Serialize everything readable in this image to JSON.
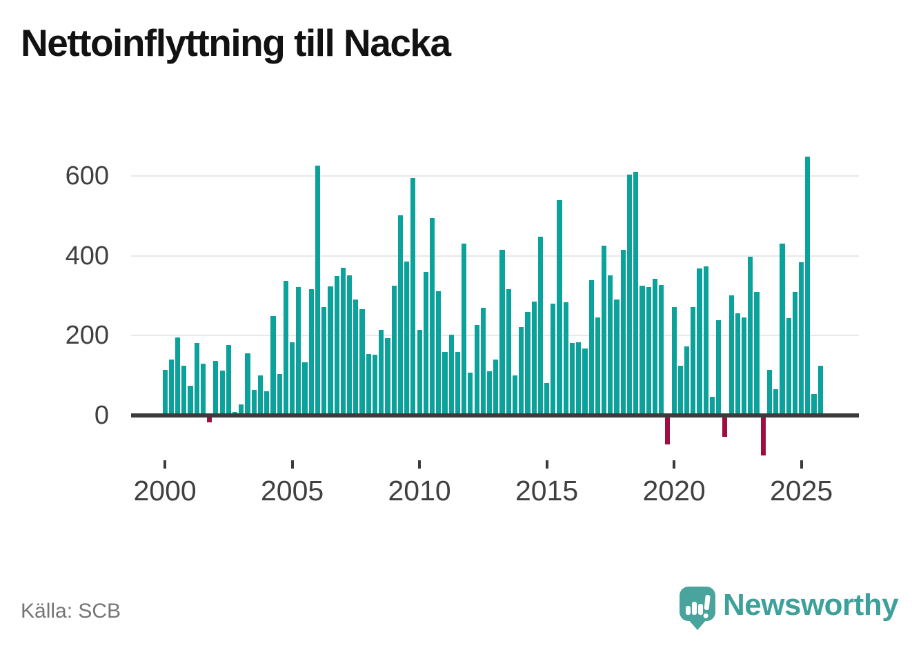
{
  "title": "Nettoinflyttning till Nacka",
  "source": "Källa: SCB",
  "logo": {
    "text": "Newsworthy"
  },
  "chart_data": {
    "type": "bar",
    "title": "Nettoinflyttning till Nacka",
    "frequency": "quarterly",
    "start": "2000 Q1",
    "end": "2025 Q4",
    "values": [
      115,
      141,
      195,
      124,
      75,
      182,
      130,
      -17,
      137,
      113,
      177,
      9,
      27,
      156,
      64,
      100,
      61,
      249,
      104,
      338,
      184,
      322,
      133,
      317,
      627,
      271,
      324,
      350,
      371,
      352,
      291,
      267,
      154,
      152,
      214,
      193,
      326,
      501,
      385,
      596,
      215,
      359,
      495,
      312,
      159,
      202,
      159,
      431,
      108,
      227,
      270,
      111,
      140,
      416,
      317,
      101,
      222,
      260,
      286,
      448,
      82,
      281,
      539,
      284,
      182,
      184,
      167,
      339,
      246,
      425,
      352,
      290,
      416,
      603,
      610,
      326,
      322,
      342,
      327,
      -72,
      271,
      125,
      173,
      271,
      369,
      373,
      47,
      238,
      -54,
      301,
      256,
      245,
      398,
      310,
      -100,
      114,
      66,
      431,
      244,
      309,
      384,
      649,
      53,
      124
    ],
    "x_ticks": [
      2000,
      2005,
      2010,
      2015,
      2020,
      2025
    ],
    "y_ticks": [
      0,
      200,
      400,
      600
    ],
    "ylim": [
      -130,
      680
    ],
    "xlabel": "",
    "ylabel": "",
    "grid": "horizontal",
    "legend": "none",
    "colors": {
      "positive": "#0aa29a",
      "negative": "#a00d3f"
    }
  }
}
